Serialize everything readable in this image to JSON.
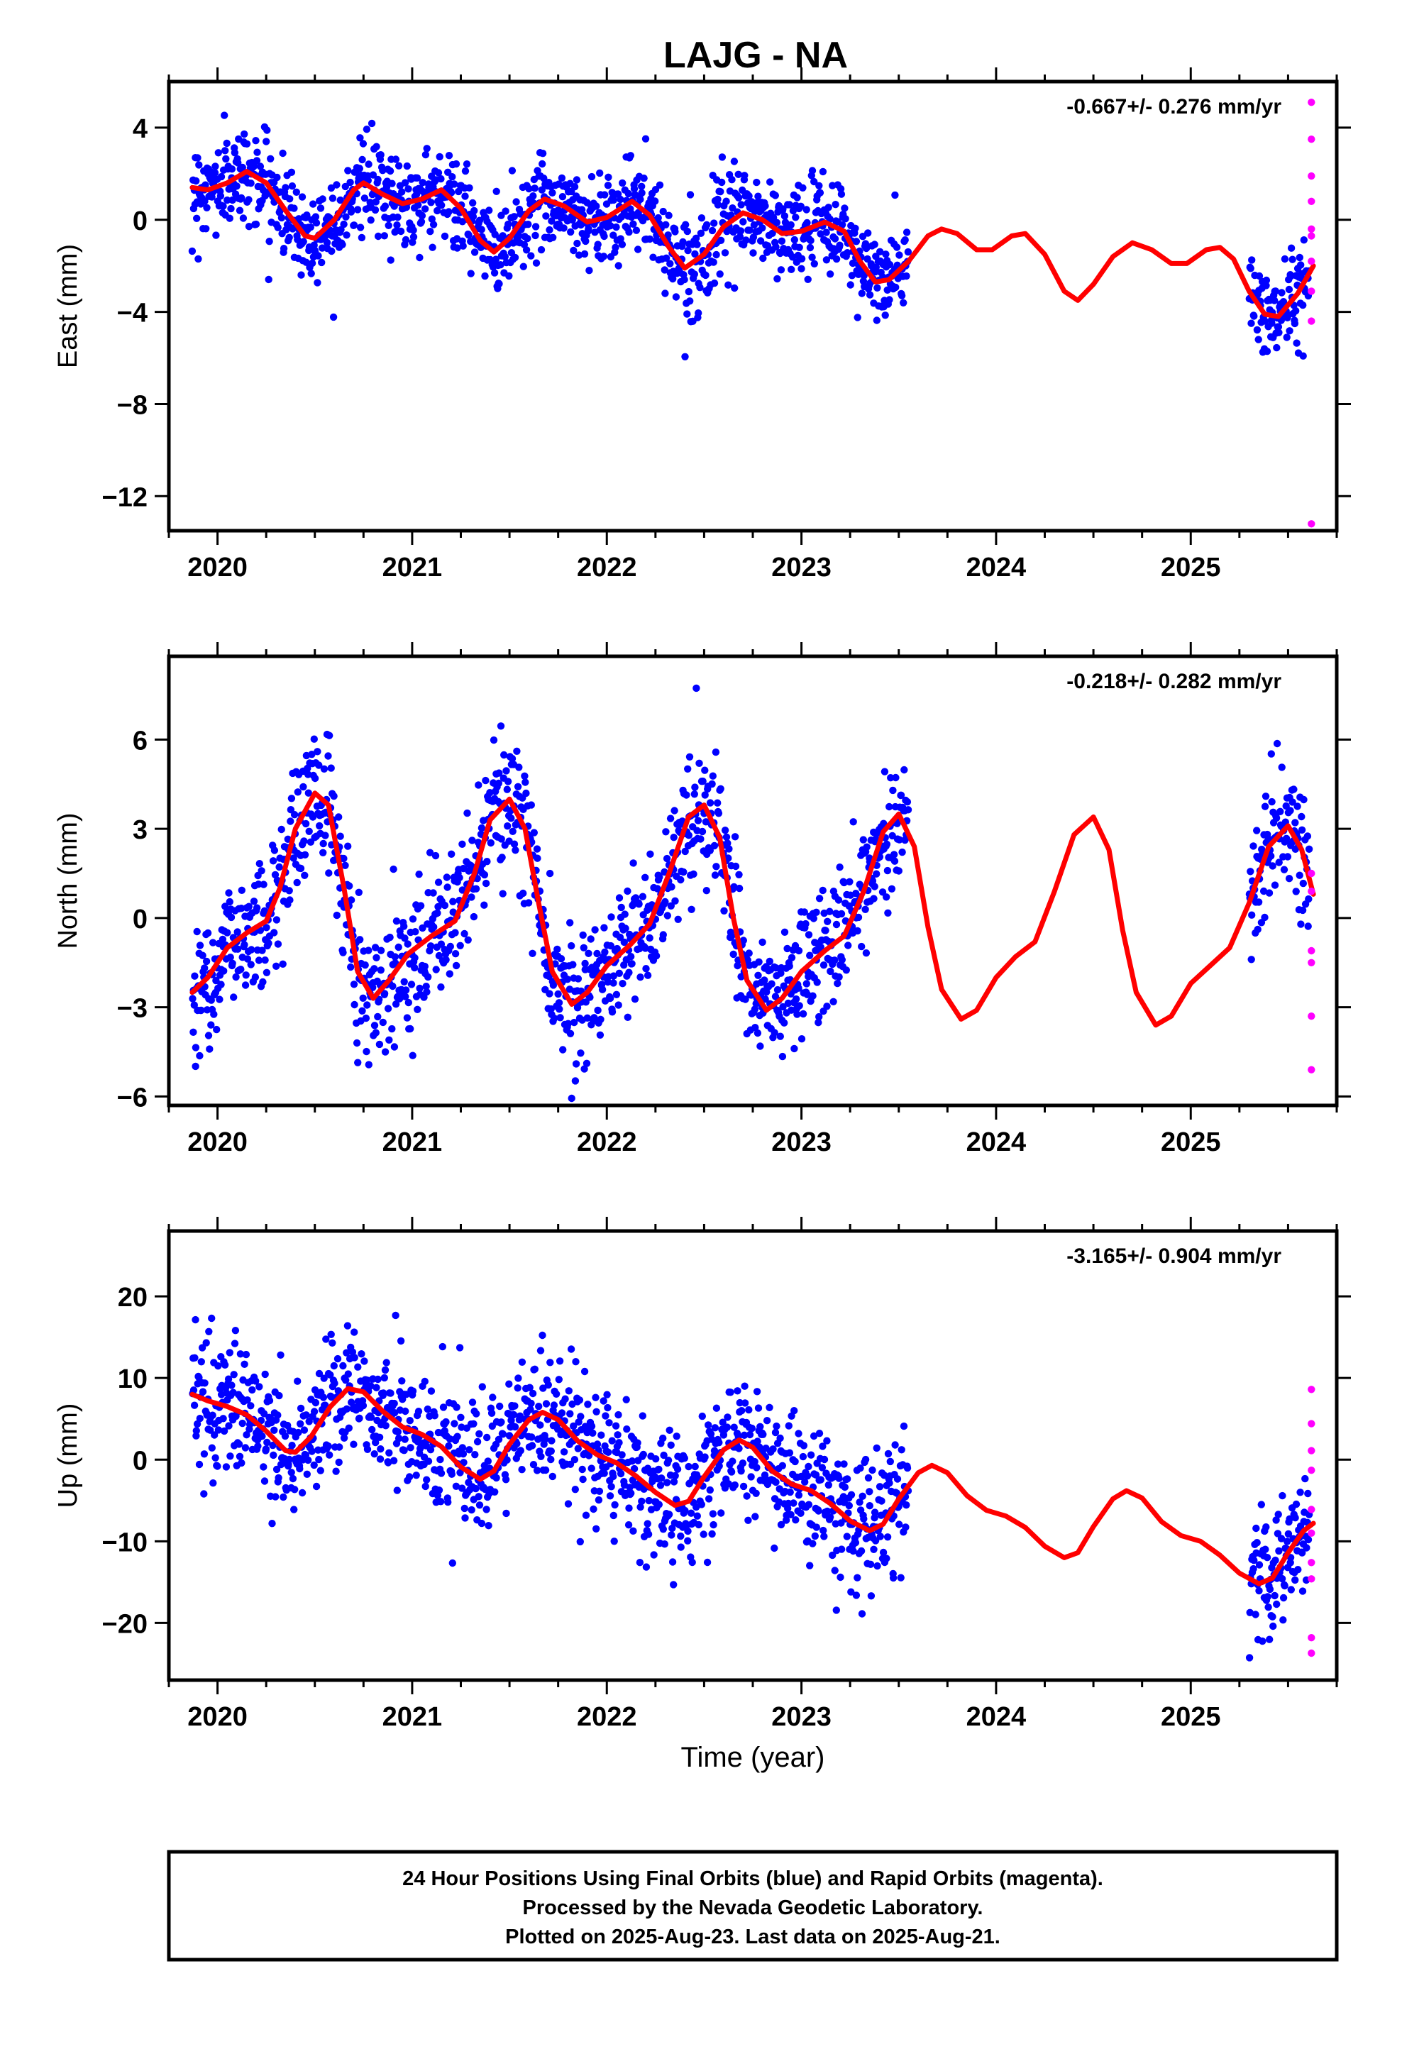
{
  "title": "LAJG - NA",
  "xlabel": "Time (year)",
  "x_tick_labels": [
    "2020",
    "2021",
    "2022",
    "2023",
    "2024",
    "2025"
  ],
  "colors": {
    "final_orbits": "#0000ff",
    "rapid_orbits": "#ff00ff",
    "model_fit": "#ff0000",
    "frame": "#000000"
  },
  "footer": {
    "line1": "24 Hour Positions Using Final Orbits (blue) and Rapid Orbits (magenta).",
    "line2": "Processed by the Nevada Geodetic Laboratory.",
    "line3": "Plotted on 2025-Aug-23. Last data on 2025-Aug-21."
  },
  "chart_data": [
    {
      "type": "scatter",
      "ylabel": "East (mm)",
      "velocity_label": "-0.667+/- 0.276 mm/yr",
      "xlim": [
        2019.75,
        2025.75
      ],
      "ylim": [
        -13.5,
        6.0
      ],
      "y_ticks": [
        4,
        0,
        -4,
        -8,
        -12
      ],
      "y_tick_labels": [
        "4",
        "0",
        "−4",
        "−8",
        "−12"
      ],
      "final_orbit_data": {
        "gap": [
          2023.55,
          2025.3
        ],
        "trend": -0.667,
        "offset": 0.3,
        "annual_amp": 1.0,
        "annual_phase": 2.2,
        "semiannual_amp": 0.6,
        "semiannual_phase": 0.5,
        "noise_sd": 1.0,
        "points_per_year": 330
      },
      "rapid_orbit_points": [
        [
          2025.62,
          5.1
        ],
        [
          2025.62,
          3.5
        ],
        [
          2025.62,
          1.9
        ],
        [
          2025.62,
          0.8
        ],
        [
          2025.62,
          -0.4
        ],
        [
          2025.62,
          -0.7
        ],
        [
          2025.62,
          -1.8
        ],
        [
          2025.62,
          -3.1
        ],
        [
          2025.62,
          -4.4
        ],
        [
          2025.62,
          -13.2
        ]
      ],
      "model_line": [
        [
          2019.87,
          1.4
        ],
        [
          2019.95,
          1.3
        ],
        [
          2020.05,
          1.6
        ],
        [
          2020.15,
          2.1
        ],
        [
          2020.25,
          1.6
        ],
        [
          2020.35,
          0.4
        ],
        [
          2020.45,
          -0.7
        ],
        [
          2020.5,
          -0.8
        ],
        [
          2020.6,
          0.0
        ],
        [
          2020.7,
          1.3
        ],
        [
          2020.75,
          1.6
        ],
        [
          2020.85,
          1.1
        ],
        [
          2020.95,
          0.7
        ],
        [
          2021.05,
          0.9
        ],
        [
          2021.15,
          1.3
        ],
        [
          2021.25,
          0.5
        ],
        [
          2021.35,
          -0.9
        ],
        [
          2021.42,
          -1.4
        ],
        [
          2021.5,
          -0.8
        ],
        [
          2021.6,
          0.4
        ],
        [
          2021.68,
          0.9
        ],
        [
          2021.78,
          0.6
        ],
        [
          2021.9,
          -0.1
        ],
        [
          2022.0,
          0.1
        ],
        [
          2022.13,
          0.8
        ],
        [
          2022.22,
          0.2
        ],
        [
          2022.32,
          -1.2
        ],
        [
          2022.4,
          -2.1
        ],
        [
          2022.5,
          -1.5
        ],
        [
          2022.6,
          -0.3
        ],
        [
          2022.7,
          0.3
        ],
        [
          2022.8,
          0.0
        ],
        [
          2022.9,
          -0.6
        ],
        [
          2023.0,
          -0.5
        ],
        [
          2023.12,
          -0.1
        ],
        [
          2023.22,
          -0.5
        ],
        [
          2023.3,
          -1.8
        ],
        [
          2023.38,
          -2.7
        ],
        [
          2023.45,
          -2.6
        ],
        [
          2023.55,
          -1.8
        ],
        [
          2023.65,
          -0.7
        ],
        [
          2023.72,
          -0.4
        ],
        [
          2023.8,
          -0.6
        ],
        [
          2023.9,
          -1.3
        ],
        [
          2023.98,
          -1.3
        ],
        [
          2024.08,
          -0.7
        ],
        [
          2024.15,
          -0.6
        ],
        [
          2024.25,
          -1.5
        ],
        [
          2024.35,
          -3.1
        ],
        [
          2024.42,
          -3.5
        ],
        [
          2024.5,
          -2.8
        ],
        [
          2024.6,
          -1.6
        ],
        [
          2024.7,
          -1.0
        ],
        [
          2024.8,
          -1.3
        ],
        [
          2024.9,
          -1.9
        ],
        [
          2024.98,
          -1.9
        ],
        [
          2025.08,
          -1.3
        ],
        [
          2025.15,
          -1.2
        ],
        [
          2025.22,
          -1.7
        ],
        [
          2025.3,
          -3.1
        ],
        [
          2025.38,
          -4.1
        ],
        [
          2025.45,
          -4.2
        ],
        [
          2025.55,
          -3.2
        ],
        [
          2025.63,
          -2.0
        ]
      ]
    },
    {
      "type": "scatter",
      "ylabel": "North (mm)",
      "velocity_label": "-0.218+/- 0.282 mm/yr",
      "xlim": [
        2019.75,
        2025.75
      ],
      "ylim": [
        -6.3,
        8.8
      ],
      "y_ticks": [
        6,
        3,
        0,
        -3,
        -6
      ],
      "y_tick_labels": [
        "6",
        "3",
        "0",
        "−3",
        "−6"
      ],
      "final_orbit_data": {
        "gap": [
          2023.55,
          2025.3
        ],
        "trend": -0.218,
        "offset": 0.0,
        "annual_amp": 3.3,
        "annual_phase": 4.6,
        "semiannual_amp": 0.8,
        "semiannual_phase": 1.5,
        "noise_sd": 1.1,
        "points_per_year": 330
      },
      "rapid_orbit_points": [
        [
          2025.62,
          1.5
        ],
        [
          2025.62,
          0.9
        ],
        [
          2025.62,
          -1.1
        ],
        [
          2025.62,
          -1.5
        ],
        [
          2025.62,
          -3.3
        ],
        [
          2025.62,
          -5.1
        ]
      ],
      "model_line": [
        [
          2019.87,
          -2.5
        ],
        [
          2019.95,
          -2.0
        ],
        [
          2020.05,
          -1.0
        ],
        [
          2020.15,
          -0.5
        ],
        [
          2020.25,
          -0.1
        ],
        [
          2020.32,
          1.0
        ],
        [
          2020.4,
          3.0
        ],
        [
          2020.5,
          4.2
        ],
        [
          2020.57,
          3.8
        ],
        [
          2020.65,
          1.0
        ],
        [
          2020.72,
          -1.8
        ],
        [
          2020.8,
          -2.7
        ],
        [
          2020.88,
          -2.1
        ],
        [
          2020.98,
          -1.2
        ],
        [
          2021.1,
          -0.6
        ],
        [
          2021.22,
          -0.1
        ],
        [
          2021.32,
          1.5
        ],
        [
          2021.4,
          3.3
        ],
        [
          2021.5,
          4.0
        ],
        [
          2021.58,
          3.0
        ],
        [
          2021.65,
          0.5
        ],
        [
          2021.72,
          -1.8
        ],
        [
          2021.82,
          -2.9
        ],
        [
          2021.9,
          -2.5
        ],
        [
          2022.0,
          -1.6
        ],
        [
          2022.12,
          -0.9
        ],
        [
          2022.22,
          -0.2
        ],
        [
          2022.32,
          1.5
        ],
        [
          2022.42,
          3.4
        ],
        [
          2022.5,
          3.8
        ],
        [
          2022.58,
          2.7
        ],
        [
          2022.65,
          0.0
        ],
        [
          2022.72,
          -2.1
        ],
        [
          2022.82,
          -3.1
        ],
        [
          2022.9,
          -2.7
        ],
        [
          2023.0,
          -1.8
        ],
        [
          2023.12,
          -1.1
        ],
        [
          2023.22,
          -0.6
        ],
        [
          2023.32,
          0.9
        ],
        [
          2023.42,
          2.9
        ],
        [
          2023.5,
          3.5
        ],
        [
          2023.58,
          2.4
        ],
        [
          2023.65,
          -0.3
        ],
        [
          2023.72,
          -2.4
        ],
        [
          2023.82,
          -3.4
        ],
        [
          2023.9,
          -3.1
        ],
        [
          2024.0,
          -2.0
        ],
        [
          2024.1,
          -1.3
        ],
        [
          2024.2,
          -0.8
        ],
        [
          2024.3,
          0.9
        ],
        [
          2024.4,
          2.8
        ],
        [
          2024.5,
          3.4
        ],
        [
          2024.58,
          2.3
        ],
        [
          2024.65,
          -0.4
        ],
        [
          2024.72,
          -2.5
        ],
        [
          2024.82,
          -3.6
        ],
        [
          2024.9,
          -3.3
        ],
        [
          2025.0,
          -2.2
        ],
        [
          2025.1,
          -1.6
        ],
        [
          2025.2,
          -1.0
        ],
        [
          2025.3,
          0.5
        ],
        [
          2025.4,
          2.4
        ],
        [
          2025.5,
          3.1
        ],
        [
          2025.57,
          2.3
        ],
        [
          2025.63,
          0.8
        ]
      ]
    },
    {
      "type": "scatter",
      "ylabel": "Up (mm)",
      "velocity_label": "-3.165+/- 0.904 mm/yr",
      "xlim": [
        2019.75,
        2025.75
      ],
      "ylim": [
        -27.0,
        28.0
      ],
      "y_ticks": [
        20,
        10,
        0,
        -10,
        -20
      ],
      "y_tick_labels": [
        "20",
        "10",
        "0",
        "−10",
        "−20"
      ],
      "final_orbit_data": {
        "gap": [
          2023.55,
          2025.3
        ],
        "trend": -3.165,
        "offset": 6.0,
        "annual_amp": 4.0,
        "annual_phase": 5.2,
        "semiannual_amp": 1.0,
        "semiannual_phase": 0.0,
        "noise_sd": 4.0,
        "points_per_year": 330
      },
      "rapid_orbit_points": [
        [
          2025.62,
          8.6
        ],
        [
          2025.62,
          4.4
        ],
        [
          2025.62,
          1.1
        ],
        [
          2025.62,
          -1.3
        ],
        [
          2025.62,
          -6.1
        ],
        [
          2025.62,
          -9.0
        ],
        [
          2025.62,
          -12.6
        ],
        [
          2025.62,
          -14.6
        ],
        [
          2025.62,
          -21.8
        ],
        [
          2025.62,
          -23.7
        ]
      ],
      "model_line": [
        [
          2019.87,
          8.0
        ],
        [
          2019.95,
          7.2
        ],
        [
          2020.05,
          6.5
        ],
        [
          2020.15,
          5.5
        ],
        [
          2020.25,
          3.5
        ],
        [
          2020.35,
          1.1
        ],
        [
          2020.4,
          0.9
        ],
        [
          2020.48,
          2.8
        ],
        [
          2020.58,
          6.5
        ],
        [
          2020.67,
          8.7
        ],
        [
          2020.75,
          8.3
        ],
        [
          2020.85,
          5.9
        ],
        [
          2020.95,
          4.0
        ],
        [
          2021.05,
          3.1
        ],
        [
          2021.15,
          1.6
        ],
        [
          2021.25,
          -0.9
        ],
        [
          2021.35,
          -2.4
        ],
        [
          2021.42,
          -1.4
        ],
        [
          2021.5,
          1.9
        ],
        [
          2021.6,
          4.9
        ],
        [
          2021.67,
          5.8
        ],
        [
          2021.75,
          4.9
        ],
        [
          2021.85,
          2.3
        ],
        [
          2021.95,
          0.6
        ],
        [
          2022.05,
          -0.4
        ],
        [
          2022.15,
          -2.0
        ],
        [
          2022.25,
          -4.0
        ],
        [
          2022.35,
          -5.6
        ],
        [
          2022.42,
          -5.1
        ],
        [
          2022.5,
          -2.1
        ],
        [
          2022.6,
          1.2
        ],
        [
          2022.68,
          2.4
        ],
        [
          2022.75,
          1.5
        ],
        [
          2022.85,
          -1.4
        ],
        [
          2022.95,
          -3.0
        ],
        [
          2023.05,
          -3.8
        ],
        [
          2023.15,
          -5.4
        ],
        [
          2023.25,
          -7.5
        ],
        [
          2023.35,
          -8.7
        ],
        [
          2023.42,
          -7.9
        ],
        [
          2023.5,
          -4.8
        ],
        [
          2023.6,
          -1.6
        ],
        [
          2023.67,
          -0.7
        ],
        [
          2023.75,
          -1.6
        ],
        [
          2023.85,
          -4.4
        ],
        [
          2023.95,
          -6.2
        ],
        [
          2024.05,
          -6.9
        ],
        [
          2024.15,
          -8.3
        ],
        [
          2024.25,
          -10.6
        ],
        [
          2024.35,
          -12.0
        ],
        [
          2024.42,
          -11.4
        ],
        [
          2024.5,
          -8.2
        ],
        [
          2024.6,
          -4.8
        ],
        [
          2024.67,
          -3.8
        ],
        [
          2024.75,
          -4.7
        ],
        [
          2024.85,
          -7.6
        ],
        [
          2024.95,
          -9.3
        ],
        [
          2025.05,
          -10.0
        ],
        [
          2025.15,
          -11.7
        ],
        [
          2025.25,
          -13.9
        ],
        [
          2025.35,
          -15.2
        ],
        [
          2025.42,
          -14.5
        ],
        [
          2025.5,
          -11.4
        ],
        [
          2025.58,
          -8.7
        ],
        [
          2025.63,
          -7.8
        ]
      ]
    }
  ]
}
